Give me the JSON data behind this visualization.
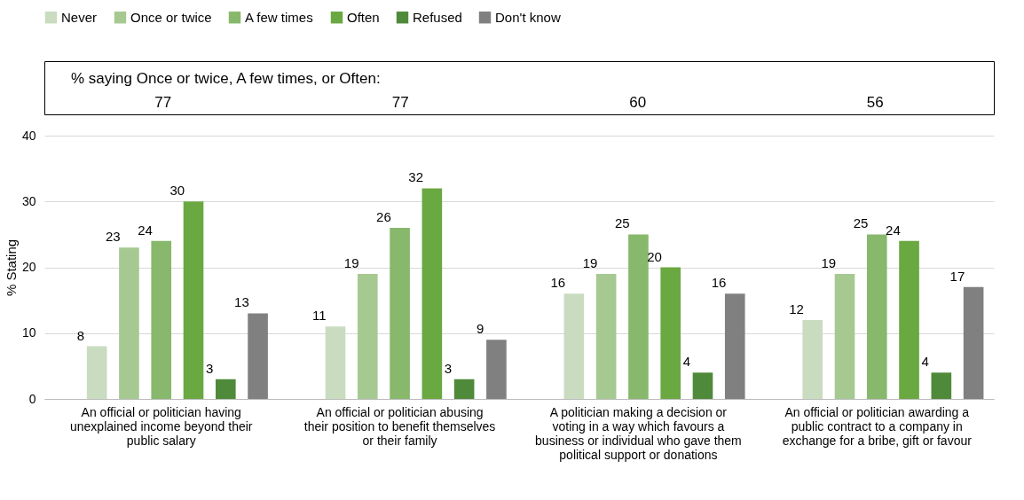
{
  "chart_data": {
    "type": "bar",
    "categories": [
      "An official or politician having unexplained income beyond their public salary",
      "An official or politician abusing their position to benefit themselves or their family",
      "A politician making a decision or voting in a way which favours a business or individual who gave them political support or donations",
      "An official or politician awarding a public contract to a company in exchange for a bribe, gift or favour"
    ],
    "series": [
      {
        "name": "Never",
        "color": "#c9dcc0",
        "values": [
          8,
          11,
          16,
          12
        ]
      },
      {
        "name": "Once or twice",
        "color": "#a6c991",
        "values": [
          23,
          19,
          19,
          19
        ]
      },
      {
        "name": "A few times",
        "color": "#87b86b",
        "values": [
          24,
          26,
          25,
          25
        ]
      },
      {
        "name": "Often",
        "color": "#6aa841",
        "values": [
          30,
          32,
          20,
          24
        ]
      },
      {
        "name": "Refused",
        "color": "#4f8a3a",
        "values": [
          3,
          3,
          4,
          4
        ]
      },
      {
        "name": "Don't know",
        "color": "#808080",
        "values": [
          13,
          9,
          16,
          17
        ]
      }
    ],
    "ylabel": "% Stating",
    "ylim": [
      0,
      40
    ],
    "yticks": [
      0,
      10,
      20,
      30,
      40
    ],
    "grid": "y",
    "legend": "top",
    "data_labels": true,
    "annotations": [
      "% saying Once or twice, A few times, or Often:",
      "77",
      "77",
      "60",
      "56"
    ]
  }
}
